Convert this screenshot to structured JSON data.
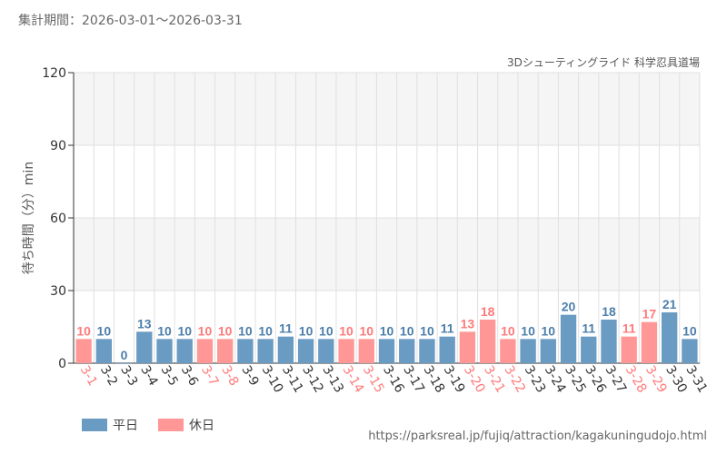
{
  "header": {
    "period_label": "集計期間：2026-03-01～2026-03-31"
  },
  "footer": {
    "source_url": "https://parksreal.jp/fujiq/attraction/kagakuningudojo.html"
  },
  "colors": {
    "weekday": "#6a9bc3",
    "holiday": "#ff9797",
    "weekday_label": "#4d7fab",
    "holiday_label": "#ff7a7a",
    "band": "#f5f5f5",
    "grid": "#e0e0e0"
  },
  "chart_data": {
    "type": "bar",
    "title": "3Dシューティングライド 科学忍具道場",
    "ylabel": "待ち時間（分）min",
    "xlabel": "",
    "ylim": [
      0,
      120
    ],
    "yticks": [
      0,
      30,
      60,
      90,
      120
    ],
    "legend_position": "bottom-left",
    "grid": true,
    "legend": [
      {
        "label": "平日",
        "type": "weekday"
      },
      {
        "label": "休日",
        "type": "holiday"
      }
    ],
    "categories": [
      "3-1",
      "3-2",
      "3-3",
      "3-4",
      "3-5",
      "3-6",
      "3-7",
      "3-8",
      "3-9",
      "3-10",
      "3-11",
      "3-12",
      "3-13",
      "3-14",
      "3-15",
      "3-16",
      "3-17",
      "3-18",
      "3-19",
      "3-20",
      "3-21",
      "3-22",
      "3-23",
      "3-24",
      "3-25",
      "3-26",
      "3-27",
      "3-28",
      "3-29",
      "3-30",
      "3-31"
    ],
    "values": [
      10,
      10,
      0,
      13,
      10,
      10,
      10,
      10,
      10,
      10,
      11,
      10,
      10,
      10,
      10,
      10,
      10,
      10,
      11,
      13,
      18,
      10,
      10,
      10,
      20,
      11,
      18,
      11,
      17,
      21,
      10
    ],
    "day_types": [
      "holiday",
      "weekday",
      "weekday",
      "weekday",
      "weekday",
      "weekday",
      "holiday",
      "holiday",
      "weekday",
      "weekday",
      "weekday",
      "weekday",
      "weekday",
      "holiday",
      "holiday",
      "weekday",
      "weekday",
      "weekday",
      "weekday",
      "holiday",
      "holiday",
      "holiday",
      "weekday",
      "weekday",
      "weekday",
      "weekday",
      "weekday",
      "holiday",
      "holiday",
      "weekday",
      "weekday"
    ]
  }
}
